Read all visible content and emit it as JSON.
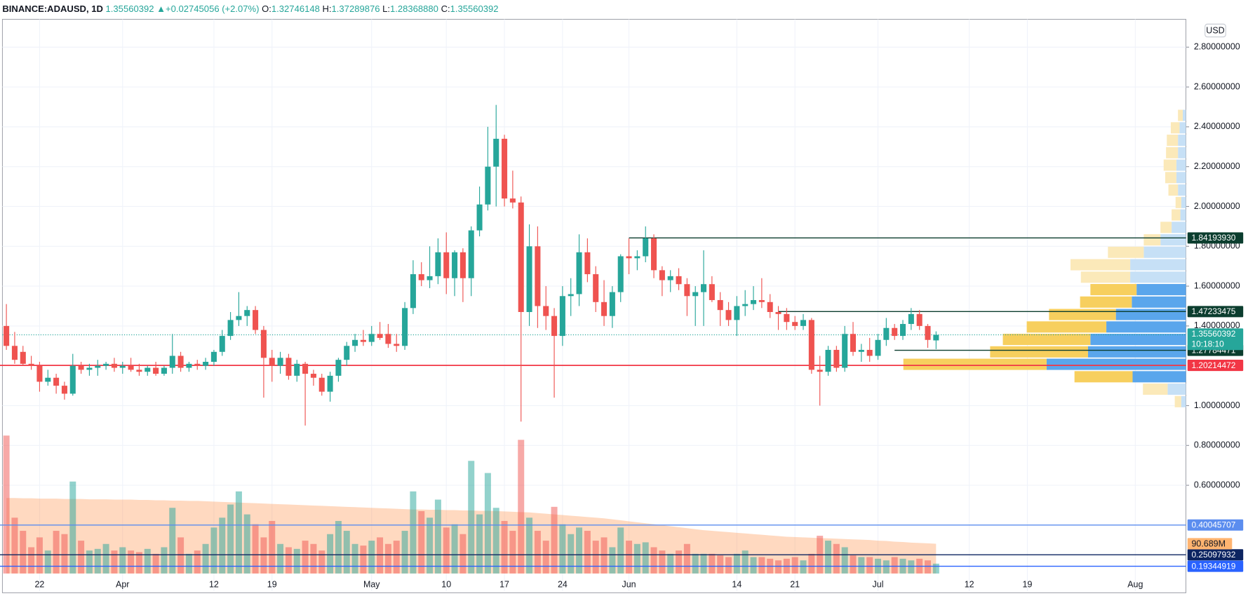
{
  "chart_data": {
    "type": "candlestick",
    "header": {
      "symbol": "BINANCE:ADAUSD, 1D",
      "last": "1.35560392",
      "change": "▲+0.02745056 (+2.07%)",
      "fields": [
        {
          "label": "O:",
          "value": "1.32746148"
        },
        {
          "label": "H:",
          "value": "1.37289876"
        },
        {
          "label": "L:",
          "value": "1.28368880"
        },
        {
          "label": "C:",
          "value": "1.35560392"
        }
      ]
    },
    "currency": "USD",
    "up_color": "#26a69a",
    "down_color": "#ef5350",
    "xlim": [
      -0.77,
      142.1
    ],
    "xticks": [
      {
        "value": 4,
        "label": "22"
      },
      {
        "value": 14,
        "label": "Apr"
      },
      {
        "value": 25,
        "label": "12"
      },
      {
        "value": 32,
        "label": "19"
      },
      {
        "value": 44,
        "label": "May"
      },
      {
        "value": 53,
        "label": "10"
      },
      {
        "value": 60,
        "label": "17"
      },
      {
        "value": 67,
        "label": "24"
      },
      {
        "value": 75,
        "label": "Jun"
      },
      {
        "value": 88,
        "label": "14"
      },
      {
        "value": 95,
        "label": "21"
      },
      {
        "value": 105,
        "label": "Jul"
      },
      {
        "value": 116,
        "label": "12"
      },
      {
        "value": 123,
        "label": "19"
      },
      {
        "value": 136,
        "label": "Aug"
      }
    ],
    "ylim": [
      0.157,
      2.94
    ],
    "yticks": [
      {
        "value": 0.6,
        "label": "0.60000000"
      },
      {
        "value": 0.8,
        "label": "0.80000000"
      },
      {
        "value": 1.0,
        "label": "1.00000000"
      },
      {
        "value": 1.4,
        "label": "1.40000000"
      },
      {
        "value": 1.6,
        "label": "1.60000000"
      },
      {
        "value": 1.8,
        "label": "1.80000000"
      },
      {
        "value": 2.0,
        "label": "2.00000000"
      },
      {
        "value": 2.2,
        "label": "2.20000000"
      },
      {
        "value": 2.4,
        "label": "2.40000000"
      },
      {
        "value": 2.6,
        "label": "2.60000000"
      },
      {
        "value": 2.8,
        "label": "2.80000000"
      }
    ],
    "grid": true,
    "ohlc": [
      [
        1.4,
        1.51,
        1.28,
        1.3
      ],
      [
        1.3,
        1.37,
        1.21,
        1.23
      ],
      [
        1.27,
        1.3,
        1.2,
        1.21
      ],
      [
        1.21,
        1.25,
        1.18,
        1.2
      ],
      [
        1.2,
        1.22,
        1.07,
        1.12
      ],
      [
        1.12,
        1.18,
        1.1,
        1.14
      ],
      [
        1.14,
        1.16,
        1.06,
        1.1
      ],
      [
        1.1,
        1.12,
        1.03,
        1.06
      ],
      [
        1.06,
        1.26,
        1.05,
        1.2
      ],
      [
        1.2,
        1.22,
        1.16,
        1.18
      ],
      [
        1.18,
        1.21,
        1.15,
        1.19
      ],
      [
        1.19,
        1.23,
        1.15,
        1.2
      ],
      [
        1.2,
        1.22,
        1.18,
        1.21
      ],
      [
        1.21,
        1.24,
        1.17,
        1.19
      ],
      [
        1.19,
        1.22,
        1.16,
        1.2
      ],
      [
        1.2,
        1.24,
        1.17,
        1.18
      ],
      [
        1.18,
        1.21,
        1.15,
        1.17
      ],
      [
        1.17,
        1.2,
        1.15,
        1.19
      ],
      [
        1.19,
        1.22,
        1.15,
        1.16
      ],
      [
        1.16,
        1.2,
        1.15,
        1.19
      ],
      [
        1.19,
        1.36,
        1.16,
        1.25
      ],
      [
        1.25,
        1.27,
        1.17,
        1.19
      ],
      [
        1.19,
        1.22,
        1.17,
        1.21
      ],
      [
        1.21,
        1.23,
        1.18,
        1.2
      ],
      [
        1.2,
        1.24,
        1.18,
        1.22
      ],
      [
        1.22,
        1.28,
        1.2,
        1.27
      ],
      [
        1.27,
        1.38,
        1.25,
        1.35
      ],
      [
        1.35,
        1.47,
        1.33,
        1.43
      ],
      [
        1.43,
        1.57,
        1.4,
        1.45
      ],
      [
        1.45,
        1.5,
        1.4,
        1.48
      ],
      [
        1.48,
        1.5,
        1.36,
        1.38
      ],
      [
        1.38,
        1.4,
        1.04,
        1.24
      ],
      [
        1.24,
        1.28,
        1.12,
        1.2
      ],
      [
        1.2,
        1.27,
        1.16,
        1.24
      ],
      [
        1.24,
        1.26,
        1.13,
        1.15
      ],
      [
        1.15,
        1.23,
        1.12,
        1.21
      ],
      [
        1.21,
        1.22,
        0.9,
        1.16
      ],
      [
        1.16,
        1.18,
        1.1,
        1.14
      ],
      [
        1.14,
        1.16,
        1.05,
        1.07
      ],
      [
        1.07,
        1.17,
        1.02,
        1.15
      ],
      [
        1.15,
        1.24,
        1.12,
        1.23
      ],
      [
        1.23,
        1.32,
        1.2,
        1.3
      ],
      [
        1.3,
        1.36,
        1.27,
        1.33
      ],
      [
        1.33,
        1.38,
        1.3,
        1.32
      ],
      [
        1.32,
        1.4,
        1.3,
        1.36
      ],
      [
        1.36,
        1.42,
        1.33,
        1.34
      ],
      [
        1.36,
        1.41,
        1.29,
        1.31
      ],
      [
        1.31,
        1.36,
        1.27,
        1.3
      ],
      [
        1.3,
        1.52,
        1.28,
        1.49
      ],
      [
        1.49,
        1.73,
        1.46,
        1.66
      ],
      [
        1.66,
        1.72,
        1.6,
        1.63
      ],
      [
        1.63,
        1.8,
        1.59,
        1.65
      ],
      [
        1.65,
        1.84,
        1.61,
        1.77
      ],
      [
        1.77,
        1.87,
        1.56,
        1.64
      ],
      [
        1.64,
        1.78,
        1.55,
        1.77
      ],
      [
        1.77,
        1.79,
        1.52,
        1.64
      ],
      [
        1.64,
        1.9,
        1.55,
        1.88
      ],
      [
        1.88,
        2.1,
        1.85,
        2.01
      ],
      [
        2.01,
        2.4,
        1.98,
        2.2
      ],
      [
        2.2,
        2.51,
        2.0,
        2.34
      ],
      [
        2.34,
        2.36,
        2.0,
        2.04
      ],
      [
        2.04,
        2.18,
        1.99,
        2.02
      ],
      [
        2.02,
        2.05,
        0.92,
        1.47
      ],
      [
        1.47,
        1.91,
        1.4,
        1.8
      ],
      [
        1.8,
        1.9,
        1.39,
        1.5
      ],
      [
        1.5,
        1.6,
        1.38,
        1.45
      ],
      [
        1.45,
        1.49,
        1.04,
        1.35
      ],
      [
        1.35,
        1.6,
        1.3,
        1.55
      ],
      [
        1.55,
        1.64,
        1.45,
        1.56
      ],
      [
        1.56,
        1.86,
        1.5,
        1.77
      ],
      [
        1.77,
        1.84,
        1.62,
        1.66
      ],
      [
        1.66,
        1.7,
        1.47,
        1.52
      ],
      [
        1.52,
        1.63,
        1.4,
        1.45
      ],
      [
        1.45,
        1.6,
        1.39,
        1.57
      ],
      [
        1.57,
        1.76,
        1.52,
        1.75
      ],
      [
        1.75,
        1.84,
        1.66,
        1.74
      ],
      [
        1.74,
        1.78,
        1.68,
        1.75
      ],
      [
        1.75,
        1.9,
        1.72,
        1.84
      ],
      [
        1.84,
        1.86,
        1.64,
        1.68
      ],
      [
        1.68,
        1.7,
        1.55,
        1.63
      ],
      [
        1.63,
        1.68,
        1.57,
        1.65
      ],
      [
        1.65,
        1.69,
        1.58,
        1.61
      ],
      [
        1.61,
        1.64,
        1.45,
        1.55
      ],
      [
        1.55,
        1.6,
        1.4,
        1.57
      ],
      [
        1.57,
        1.78,
        1.4,
        1.61
      ],
      [
        1.61,
        1.65,
        1.52,
        1.53
      ],
      [
        1.53,
        1.57,
        1.4,
        1.48
      ],
      [
        1.48,
        1.52,
        1.4,
        1.43
      ],
      [
        1.43,
        1.55,
        1.35,
        1.5
      ],
      [
        1.5,
        1.58,
        1.45,
        1.51
      ],
      [
        1.51,
        1.6,
        1.48,
        1.53
      ],
      [
        1.53,
        1.64,
        1.49,
        1.52
      ],
      [
        1.52,
        1.56,
        1.44,
        1.47
      ],
      [
        1.47,
        1.5,
        1.38,
        1.46
      ],
      [
        1.46,
        1.49,
        1.38,
        1.42
      ],
      [
        1.42,
        1.45,
        1.38,
        1.4
      ],
      [
        1.4,
        1.46,
        1.38,
        1.43
      ],
      [
        1.43,
        1.44,
        1.16,
        1.18
      ],
      [
        1.18,
        1.25,
        1.0,
        1.17
      ],
      [
        1.17,
        1.3,
        1.15,
        1.28
      ],
      [
        1.28,
        1.3,
        1.17,
        1.19
      ],
      [
        1.19,
        1.4,
        1.17,
        1.36
      ],
      [
        1.36,
        1.42,
        1.25,
        1.27
      ],
      [
        1.27,
        1.31,
        1.22,
        1.28
      ],
      [
        1.28,
        1.34,
        1.22,
        1.25
      ],
      [
        1.25,
        1.36,
        1.23,
        1.33
      ],
      [
        1.33,
        1.44,
        1.3,
        1.39
      ],
      [
        1.39,
        1.41,
        1.33,
        1.35
      ],
      [
        1.35,
        1.43,
        1.33,
        1.41
      ],
      [
        1.41,
        1.49,
        1.38,
        1.46
      ],
      [
        1.46,
        1.48,
        1.38,
        1.4
      ],
      [
        1.4,
        1.41,
        1.29,
        1.33
      ],
      [
        1.32746148,
        1.37289876,
        1.2836888,
        1.35560392
      ]
    ],
    "volume": [
      420,
      170,
      130,
      80,
      110,
      70,
      130,
      120,
      280,
      100,
      70,
      75,
      90,
      70,
      80,
      70,
      65,
      75,
      60,
      80,
      200,
      110,
      60,
      70,
      90,
      140,
      170,
      210,
      250,
      180,
      150,
      110,
      160,
      90,
      80,
      75,
      100,
      90,
      70,
      120,
      160,
      130,
      90,
      85,
      100,
      110,
      90,
      100,
      130,
      250,
      190,
      170,
      225,
      140,
      150,
      120,
      343,
      180,
      306,
      200,
      160,
      130,
      407,
      170,
      130,
      100,
      203,
      150,
      120,
      140,
      130,
      100,
      110,
      80,
      140,
      100,
      90,
      95,
      80,
      70,
      60,
      70,
      90,
      60,
      60,
      60,
      55,
      50,
      60,
      70,
      50,
      50,
      45,
      40,
      45,
      50,
      40,
      60,
      115,
      100,
      90,
      80,
      55,
      50,
      50,
      45,
      40,
      50,
      45,
      40,
      45,
      40,
      30
    ],
    "volume_ma": [
      230,
      230,
      229,
      229,
      228,
      228,
      228,
      227,
      227,
      227,
      226,
      226,
      226,
      225,
      225,
      225,
      224,
      224,
      223,
      223,
      222,
      222,
      221,
      221,
      220,
      219,
      218,
      217,
      216,
      215,
      214,
      213,
      212,
      211,
      210,
      209,
      208,
      207,
      206,
      205,
      204,
      203,
      202,
      201,
      200,
      199,
      198,
      197,
      196,
      195,
      195,
      194,
      194,
      193,
      193,
      192,
      192,
      191,
      191,
      190,
      189,
      188,
      187,
      186,
      184,
      182,
      180,
      178,
      176,
      174,
      172,
      170,
      168,
      165,
      162,
      159,
      156,
      153,
      150,
      147,
      144,
      141,
      138,
      135,
      132,
      130,
      128,
      126,
      124,
      122,
      120,
      118,
      116,
      114,
      112,
      111,
      110,
      109,
      108,
      107,
      106,
      105,
      104,
      103,
      102,
      100,
      99,
      97,
      96,
      94,
      93,
      92,
      90.689
    ],
    "volume_ma_label": "90.689M",
    "volume_lim": [
      0,
      450
    ],
    "volume_profile": {
      "prices": [
        1.02,
        1.0825,
        1.145,
        1.2075,
        1.27,
        1.3325,
        1.395,
        1.4575,
        1.52,
        1.5825,
        1.645,
        1.7075,
        1.77,
        1.8325,
        1.895,
        1.9575,
        2.02,
        2.0825,
        2.145,
        2.2075,
        2.27,
        2.3325,
        2.395,
        2.4575
      ],
      "up": [
        6,
        23,
        67,
        175,
        123,
        120,
        100,
        88,
        68,
        62,
        70,
        70,
        53,
        32,
        18,
        7,
        6,
        10,
        12,
        12,
        10,
        10,
        8,
        4
      ],
      "down": [
        8,
        31,
        73,
        180,
        123,
        110,
        100,
        84,
        65,
        58,
        62,
        75,
        45,
        21,
        14,
        11,
        7,
        12,
        14,
        16,
        15,
        14,
        11,
        6
      ],
      "value_area": [
        1.145,
        1.5825
      ]
    },
    "current": {
      "value": 1.35560392,
      "label": "1.35560392",
      "countdown": "10:18:10",
      "color": "#26a69a"
    },
    "levels": [
      {
        "value": 1.8419393,
        "label": "1.84193930",
        "color": "#0b3d2e",
        "start": 75
      },
      {
        "value": 1.47233475,
        "label": "1.47233475",
        "color": "#0b3d2e",
        "start": 93
      },
      {
        "value": 1.27784471,
        "label": "1.27784471",
        "color": "#0b3d2e",
        "start": 107
      },
      {
        "value": 1.20214472,
        "label": "1.20214472",
        "color": "#f23645",
        "start": -0.77
      },
      {
        "value": 0.40045707,
        "label": "0.40045707",
        "color": "#5b8def",
        "start": -0.77
      },
      {
        "value": 0.25097932,
        "label": "0.25097932",
        "color": "#0c2461",
        "start": -0.77
      },
      {
        "value": 0.19344919,
        "label": "0.19344919",
        "color": "#2962ff",
        "start": -0.77
      }
    ]
  }
}
